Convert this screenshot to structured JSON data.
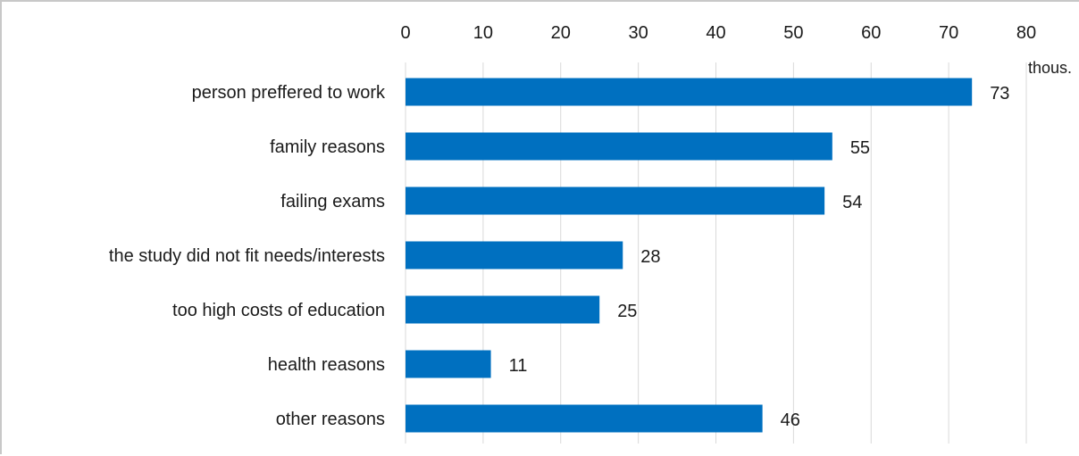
{
  "chart_data": {
    "type": "bar",
    "orientation": "horizontal",
    "categories": [
      "person preffered to work",
      "family reasons",
      "failing exams",
      "the study did not fit  needs/interests",
      "too high costs of education",
      "health reasons",
      "other reasons"
    ],
    "values": [
      73,
      55,
      54,
      28,
      25,
      11,
      46
    ],
    "xlim": [
      0,
      80
    ],
    "xticks": [
      "0",
      "10",
      "20",
      "30",
      "40",
      "50",
      "60",
      "70",
      "80"
    ],
    "unit_label": "thous.",
    "title": "",
    "xlabel": "",
    "ylabel": "",
    "axis_position": "top",
    "grid": true,
    "legend": "none",
    "bar_color": "#0070c0"
  }
}
